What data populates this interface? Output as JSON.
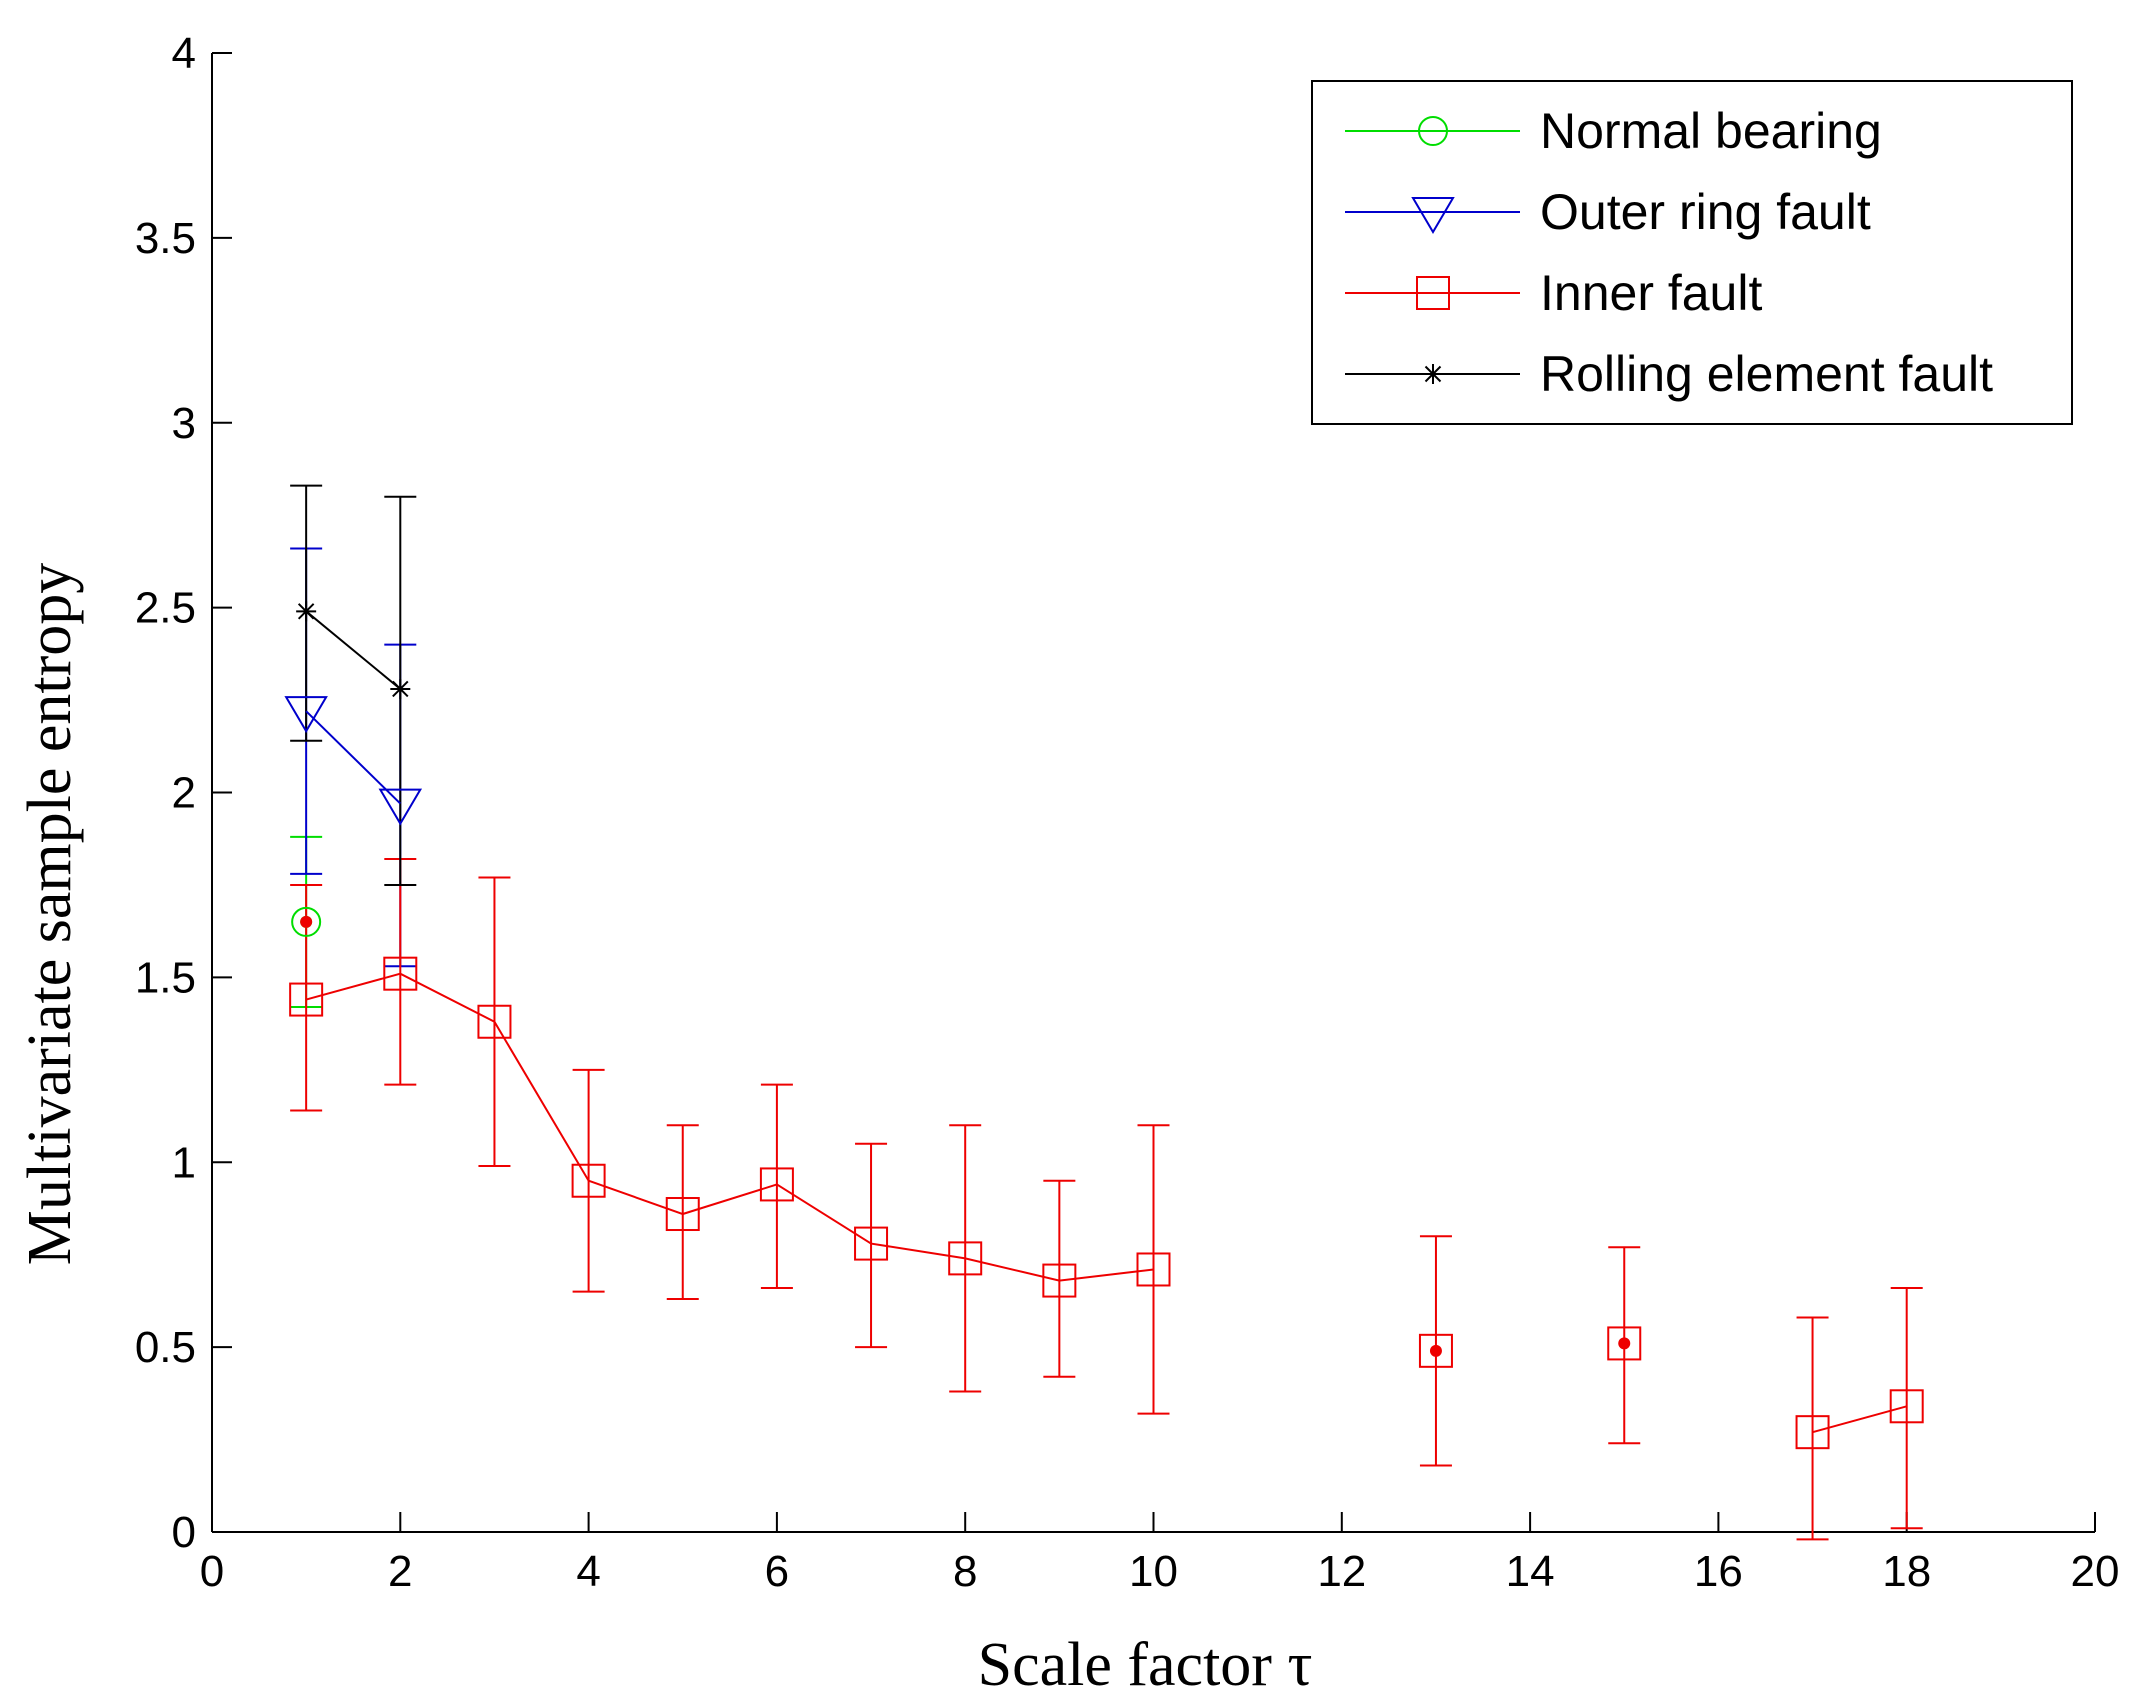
{
  "chart_data": {
    "type": "line",
    "xlabel": "Scale factor τ",
    "ylabel": "Multivariate sample entropy",
    "xlim": [
      0,
      20
    ],
    "ylim": [
      0,
      4
    ],
    "xticks": [
      "0",
      "2",
      "4",
      "6",
      "8",
      "10",
      "12",
      "14",
      "16",
      "18",
      "20"
    ],
    "yticks": [
      "0",
      "0.5",
      "1",
      "1.5",
      "2",
      "2.5",
      "3",
      "3.5",
      "4"
    ],
    "grid": false,
    "legend_position": "top-right",
    "series": [
      {
        "name": "Normal bearing",
        "color": "#00dd00",
        "marker": "circle",
        "points": [
          {
            "x": 1,
            "y": 1.65,
            "lo": 1.42,
            "hi": 1.88
          }
        ]
      },
      {
        "name": "Outer ring fault",
        "color": "#0000cc",
        "marker": "triangle-down",
        "points": [
          {
            "x": 1,
            "y": 2.22,
            "lo": 1.78,
            "hi": 2.66
          },
          {
            "x": 2,
            "y": 1.97,
            "lo": 1.53,
            "hi": 2.4
          }
        ]
      },
      {
        "name": "Inner fault",
        "color": "#ee0000",
        "marker": "square",
        "segments": [
          [
            1,
            2,
            3,
            4,
            5,
            6,
            7,
            8,
            9,
            10
          ],
          [
            13
          ],
          [
            15
          ],
          [
            17,
            18
          ]
        ],
        "points": [
          {
            "x": 1,
            "y": 1.44,
            "lo": 1.14,
            "hi": 1.75
          },
          {
            "x": 2,
            "y": 1.51,
            "lo": 1.21,
            "hi": 1.82
          },
          {
            "x": 3,
            "y": 1.38,
            "lo": 0.99,
            "hi": 1.77
          },
          {
            "x": 4,
            "y": 0.95,
            "lo": 0.65,
            "hi": 1.25
          },
          {
            "x": 5,
            "y": 0.86,
            "lo": 0.63,
            "hi": 1.1
          },
          {
            "x": 6,
            "y": 0.94,
            "lo": 0.66,
            "hi": 1.21
          },
          {
            "x": 7,
            "y": 0.78,
            "lo": 0.5,
            "hi": 1.05
          },
          {
            "x": 8,
            "y": 0.74,
            "lo": 0.38,
            "hi": 1.1
          },
          {
            "x": 9,
            "y": 0.68,
            "lo": 0.42,
            "hi": 0.95
          },
          {
            "x": 10,
            "y": 0.71,
            "lo": 0.32,
            "hi": 1.1
          },
          {
            "x": 13,
            "y": 0.49,
            "lo": 0.18,
            "hi": 0.8
          },
          {
            "x": 15,
            "y": 0.51,
            "lo": 0.24,
            "hi": 0.77
          },
          {
            "x": 17,
            "y": 0.27,
            "lo": -0.02,
            "hi": 0.58
          },
          {
            "x": 18,
            "y": 0.34,
            "lo": 0.01,
            "hi": 0.66
          }
        ]
      },
      {
        "name": "Rolling element fault",
        "color": "#000000",
        "marker": "star",
        "points": [
          {
            "x": 1,
            "y": 2.49,
            "lo": 2.14,
            "hi": 2.83
          },
          {
            "x": 2,
            "y": 2.28,
            "lo": 1.75,
            "hi": 2.8
          }
        ]
      }
    ]
  }
}
